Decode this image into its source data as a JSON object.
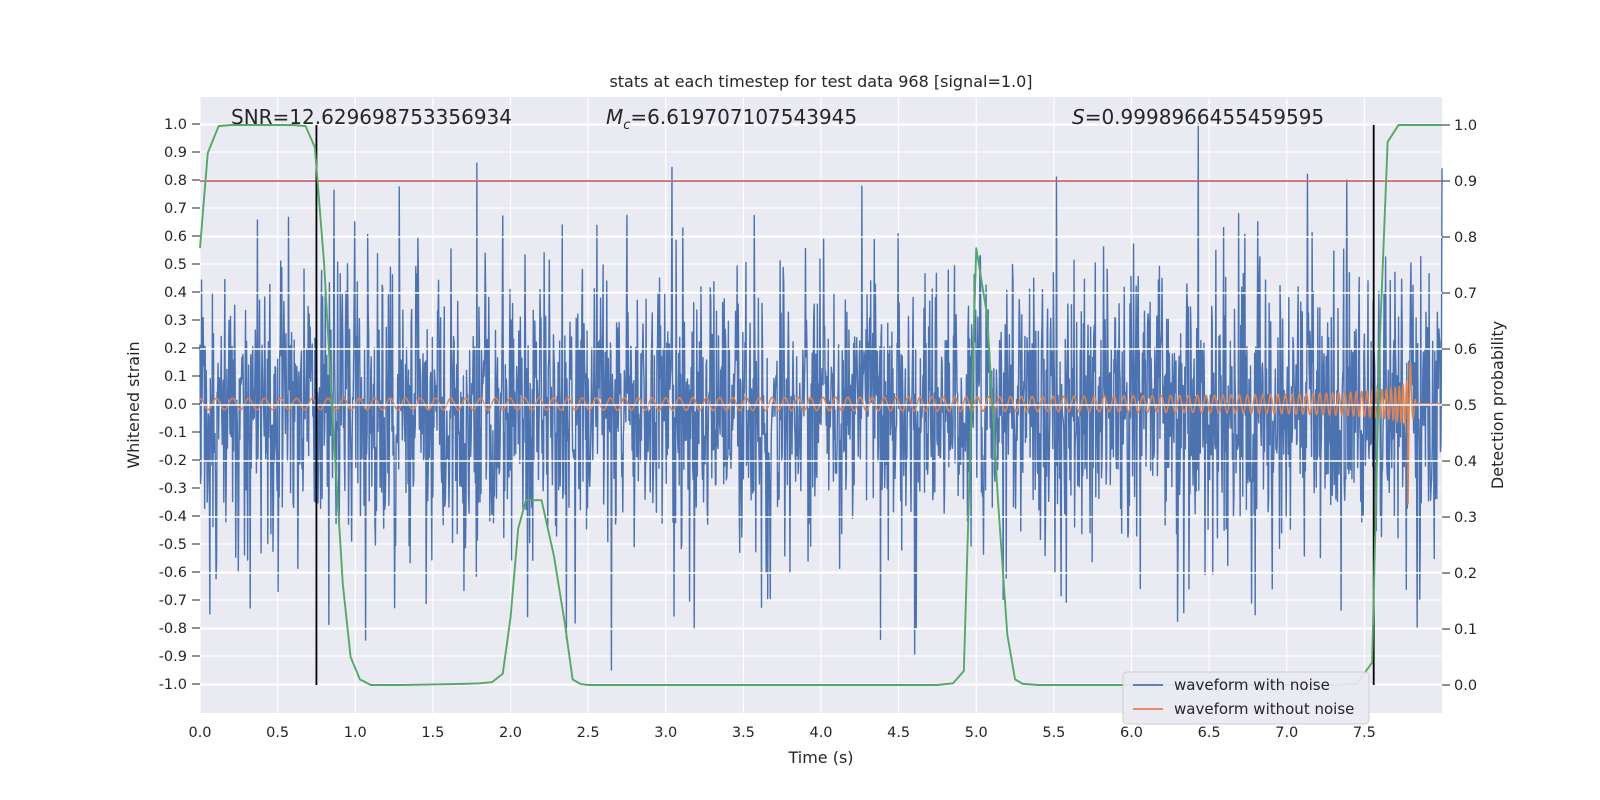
{
  "chart_data": {
    "type": "line",
    "title": "stats at each timestep for test data 968 [signal=1.0]",
    "xlabel": "Time (s)",
    "ylabel_left": "Whitened strain",
    "ylabel_right": "Detection probability",
    "xlim": [
      0.0,
      8.0
    ],
    "ylim_left": [
      -1.05,
      1.05
    ],
    "ylim_right": [
      -0.05,
      1.05
    ],
    "x_ticks": [
      "0.0",
      "0.5",
      "1.0",
      "1.5",
      "2.0",
      "2.5",
      "3.0",
      "3.5",
      "4.0",
      "4.5",
      "5.0",
      "5.5",
      "6.0",
      "6.5",
      "7.0",
      "7.5"
    ],
    "y_ticks_left": [
      "1.0",
      "0.9",
      "0.8",
      "0.7",
      "0.6",
      "0.5",
      "0.4",
      "0.3",
      "0.2",
      "0.1",
      "0.0",
      "-0.1",
      "-0.2",
      "-0.3",
      "-0.4",
      "-0.5",
      "-0.6",
      "-0.7",
      "-0.8",
      "-0.9",
      "-1.0"
    ],
    "y_ticks_right": [
      "1.0",
      "0.9",
      "0.8",
      "0.7",
      "0.6",
      "0.5",
      "0.4",
      "0.3",
      "0.2",
      "0.1",
      "0.0"
    ],
    "grid": true,
    "background": "#eaeaf2",
    "annotations": {
      "snr": "SNR=12.629698753356934",
      "mc_symbol": "M",
      "mc_subscript": "c",
      "mc_value": "=6.619707107543945",
      "s_symbol": "S",
      "s_value": "=0.9998966455459595"
    },
    "threshold": {
      "value": 0.9,
      "axis": "right",
      "color": "#c44e52"
    },
    "vertical_markers": [
      0.75,
      7.56
    ],
    "legend": {
      "placement": "lower-right",
      "entries": [
        "waveform with noise",
        "waveform without noise"
      ]
    },
    "series": [
      {
        "name": "waveform with noise",
        "axis": "left",
        "color": "#4c72b0",
        "kind": "noise",
        "x_range": [
          0.0,
          8.0
        ],
        "typical_abs": 0.42,
        "max_peak": 1.0,
        "min_peak": -0.95
      },
      {
        "name": "waveform without noise",
        "axis": "left",
        "color": "#dd8452",
        "kind": "chirp",
        "x_range": [
          0.0,
          8.0
        ],
        "amplitude_at_0s": 0.02,
        "amplitude_at_5s": 0.05,
        "amplitude_at_7s": 0.11,
        "peak_amplitude": 0.3,
        "merger_time": 7.78
      },
      {
        "name": "detection probability",
        "axis": "right",
        "color": "#55a868",
        "kind": "line",
        "x": [
          0.0,
          0.05,
          0.12,
          0.2,
          0.4,
          0.5,
          0.6,
          0.68,
          0.74,
          0.8,
          0.86,
          0.92,
          0.97,
          1.03,
          1.1,
          1.3,
          1.5,
          1.7,
          1.8,
          1.88,
          1.95,
          2.0,
          2.05,
          2.1,
          2.2,
          2.28,
          2.35,
          2.4,
          2.45,
          2.5,
          2.7,
          3.0,
          3.5,
          4.0,
          4.5,
          4.75,
          4.85,
          4.92,
          5.0,
          5.07,
          5.14,
          5.2,
          5.25,
          5.3,
          5.4,
          5.6,
          6.0,
          6.5,
          7.0,
          7.3,
          7.45,
          7.55,
          7.6,
          7.65,
          7.72,
          7.8,
          8.0
        ],
        "y": [
          0.78,
          0.95,
          0.998,
          1.0,
          1.0,
          1.0,
          1.0,
          0.998,
          0.96,
          0.75,
          0.45,
          0.18,
          0.05,
          0.01,
          0.0,
          0.0,
          0.001,
          0.002,
          0.003,
          0.005,
          0.02,
          0.12,
          0.28,
          0.33,
          0.33,
          0.23,
          0.11,
          0.01,
          0.002,
          0.0,
          0.0,
          0.0,
          0.0,
          0.0,
          0.0,
          0.0,
          0.003,
          0.025,
          0.78,
          0.66,
          0.33,
          0.09,
          0.01,
          0.002,
          0.0,
          0.0,
          0.0,
          0.0,
          0.0,
          0.0,
          0.002,
          0.04,
          0.62,
          0.97,
          1.0,
          1.0,
          1.0
        ]
      }
    ]
  }
}
